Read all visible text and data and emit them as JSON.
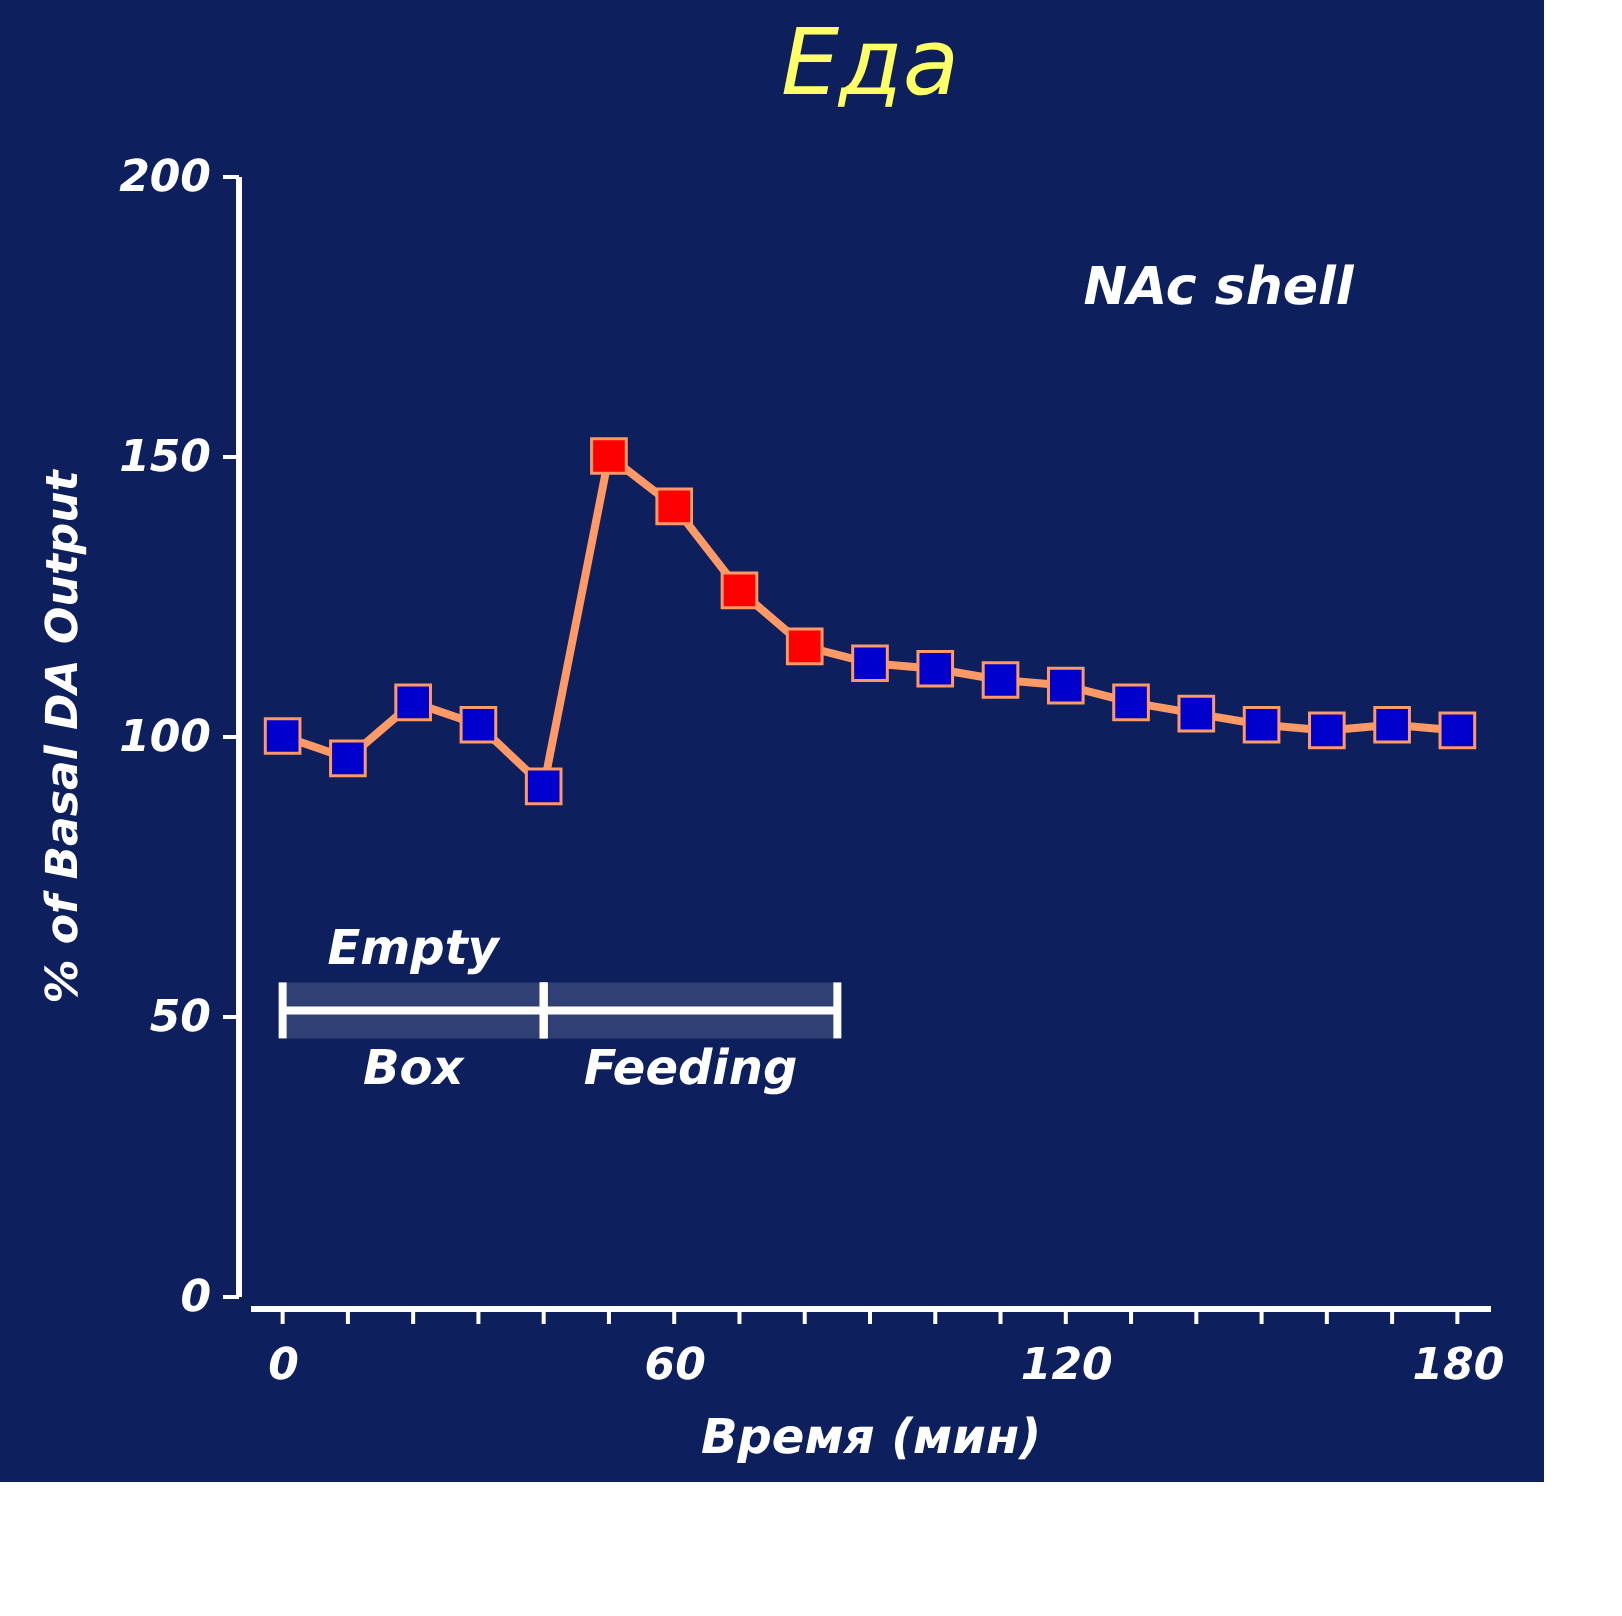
{
  "chart_data": {
    "type": "line",
    "title": "Еда",
    "xlabel": "Время (мин)",
    "ylabel": "% of Basal DA Output",
    "x": [
      0,
      10,
      20,
      30,
      40,
      50,
      60,
      70,
      80,
      90,
      100,
      110,
      120,
      130,
      140,
      150,
      160,
      170,
      180
    ],
    "series": [
      {
        "color": "#ff9966",
        "values": [
          100,
          96,
          106,
          102,
          91,
          150,
          141,
          126,
          116,
          113,
          112,
          110,
          109,
          106,
          104,
          102,
          101,
          102,
          101
        ],
        "colors": [
          "#0000cc",
          "#0000cc",
          "#0000cc",
          "#0000cc",
          "#0000cc",
          "#ff0000",
          "#ff0000",
          "#ff0000",
          "#ff0000",
          "#0000cc",
          "#0000cc",
          "#0000cc",
          "#0000cc",
          "#0000cc",
          "#0000cc",
          "#0000cc",
          "#0000cc",
          "#0000cc",
          "#0000cc"
        ]
      }
    ],
    "xlim": [
      -5,
      185
    ],
    "ylim": [
      0,
      200
    ],
    "xticks": [
      0,
      {
        "value": 10,
        "label": null
      },
      {
        "value": 20,
        "label": null
      },
      {
        "value": 30,
        "label": null
      },
      {
        "value": 40,
        "label": null
      },
      {
        "value": 50,
        "label": null
      },
      60,
      {
        "value": 70,
        "label": null
      },
      {
        "value": 80,
        "label": null
      },
      {
        "value": 90,
        "label": null
      },
      {
        "value": 100,
        "label": null
      },
      {
        "value": 110,
        "label": null
      },
      120,
      {
        "value": 130,
        "label": null
      },
      {
        "value": 140,
        "label": null
      },
      {
        "value": 150,
        "label": null
      },
      {
        "value": 160,
        "label": null
      },
      {
        "value": 170,
        "label": null
      },
      180
    ],
    "yticks": [
      0,
      50,
      100,
      150,
      200
    ],
    "marker": "square",
    "line_style": "solid",
    "grid": false,
    "bands": [
      {
        "axis": "x",
        "from": 0,
        "to": 40,
        "label": "Empty Box",
        "color": "#ffffff"
      },
      {
        "axis": "x",
        "from": 40,
        "to": 85,
        "label": "Feeding",
        "color": "#ffffff"
      }
    ],
    "annotations": [
      "NAc shell"
    ]
  }
}
